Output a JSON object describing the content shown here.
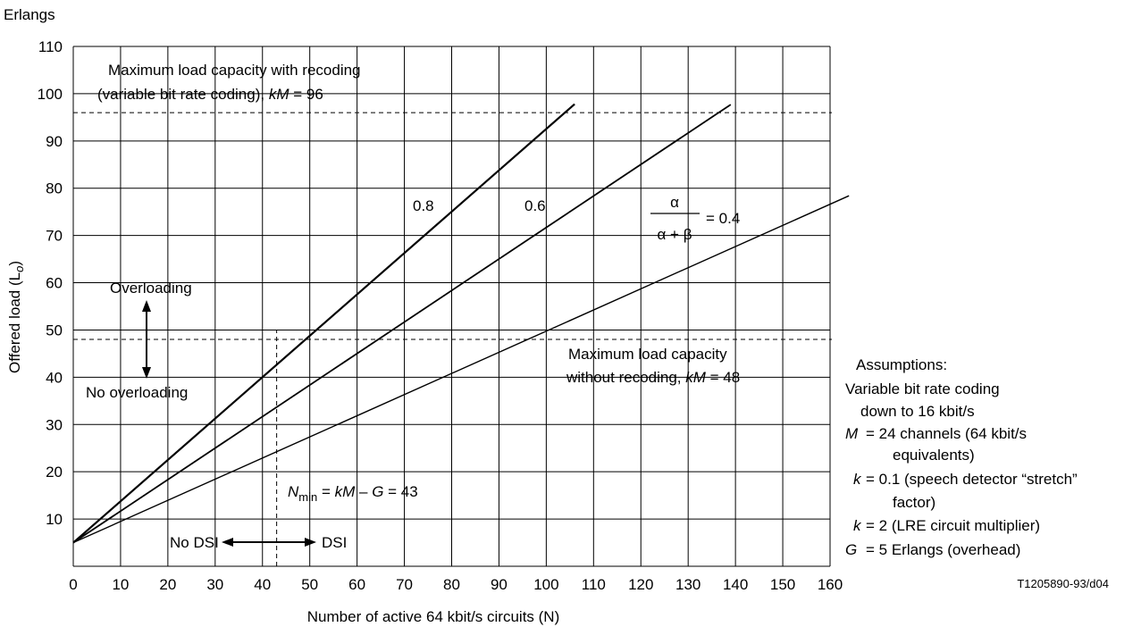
{
  "chart_data": {
    "type": "line",
    "title": "",
    "top_label": "Erlangs",
    "xlabel": "Number of active 64 kbit/s circuits (N)",
    "ylabel_main": "Offered load (L",
    "ylabel_sub": "o",
    "ylabel_close": ")",
    "xlim": [
      0,
      160
    ],
    "ylim": [
      0,
      110
    ],
    "x_ticks": [
      0,
      10,
      20,
      30,
      40,
      50,
      60,
      70,
      80,
      90,
      100,
      110,
      120,
      130,
      140,
      150,
      160
    ],
    "y_ticks": [
      10,
      20,
      30,
      40,
      50,
      60,
      70,
      80,
      90,
      100,
      110
    ],
    "grid": true,
    "series": [
      {
        "name": "0.8",
        "x": [
          0,
          106
        ],
        "y": [
          5,
          97.8
        ]
      },
      {
        "name": "0.6",
        "x": [
          0,
          139
        ],
        "y": [
          5,
          97.7
        ]
      },
      {
        "name": "0.4",
        "x": [
          0,
          164
        ],
        "y": [
          5,
          78.4
        ]
      }
    ],
    "reference_lines": [
      {
        "orientation": "horizontal",
        "value": 96,
        "style": "dashed"
      },
      {
        "orientation": "horizontal",
        "value": 48,
        "style": "dashed"
      },
      {
        "orientation": "vertical",
        "value": 43,
        "style": "dashed",
        "range": [
          0,
          50
        ]
      }
    ],
    "annotations": {
      "recoding_line1": "Maximum load capacity with recoding",
      "recoding_line2_pre": "(variable bit rate coding), ",
      "recoding_k": "k",
      "recoding_M": "M",
      "recoding_val": " = 96",
      "norecoding_line1": "Maximum load capacity",
      "norecoding_line2_pre": "without recoding, ",
      "norecoding_k": "k",
      "norecoding_M": "M",
      "norecoding_val": " = 48",
      "label_08": "0.8",
      "label_06": "0.6",
      "frac_num": "α",
      "frac_den": "α + β",
      "frac_val": "= 0.4",
      "overloading": "Overloading",
      "no_overloading": "No overloading",
      "nmin_N": "N",
      "nmin_sub": "min",
      "nmin_eq": " = ",
      "nmin_k": "k",
      "nmin_M": "M",
      "nmin_minus": " – ",
      "nmin_G": "G",
      "nmin_val": " = 43",
      "no_dsi": "No DSI",
      "dsi": "DSI",
      "figure_id": "T1205890-93/d04"
    },
    "assumptions": {
      "title": "Assumptions:",
      "l1": "Variable bit rate coding",
      "l2": "down to 16 kbit/s",
      "m_sym": "M",
      "m_line1": "= 24 channels (64 kbit/s",
      "m_line2": "equivalents)",
      "k1_sym": "k",
      "k1_line1": "= 0.1 (speech detector “stretch”",
      "k1_line2": "factor)",
      "k2_sym": "k",
      "k2_line": "= 2 (LRE circuit multiplier)",
      "g_sym": "G",
      "g_line": "= 5 Erlangs (overhead)"
    }
  }
}
